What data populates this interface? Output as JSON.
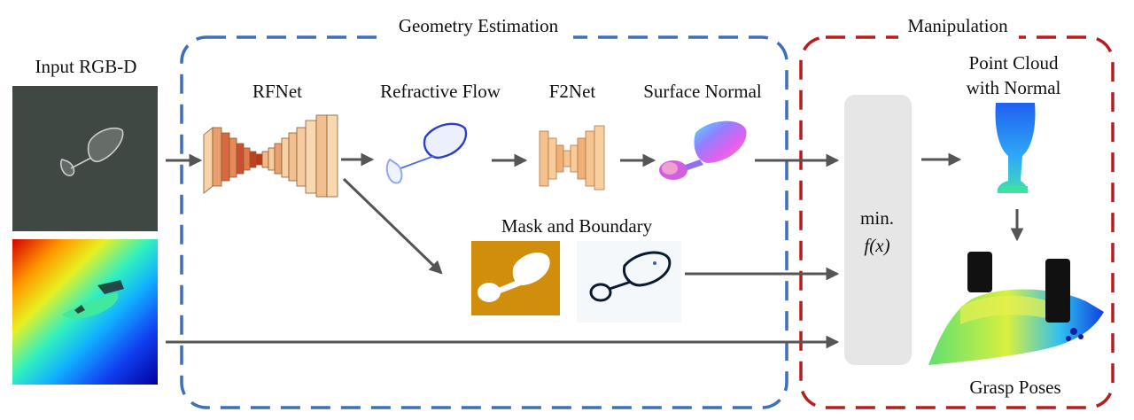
{
  "groups": {
    "geometry_title": "Geometry Estimation",
    "manipulation_title": "Manipulation"
  },
  "input": {
    "label": "Input RGB-D"
  },
  "modules": {
    "rfnet": "RFNet",
    "refractive_flow": "Refractive Flow",
    "f2net": "F2Net",
    "surface_normal": "Surface Normal",
    "mask_boundary": "Mask and Boundary"
  },
  "optimizer": {
    "line1": "min.",
    "line2": "f(x)"
  },
  "outputs": {
    "point_cloud_line1": "Point Cloud",
    "point_cloud_line2": "with Normal",
    "grasp_poses": "Grasp Poses"
  },
  "colors": {
    "geometry_border": "#3f6fb8",
    "manipulation_border": "#b81c1c",
    "arrow": "#555555",
    "optimizer_fill": "#e6e6e6",
    "mask_fill": "#d08e0c"
  }
}
